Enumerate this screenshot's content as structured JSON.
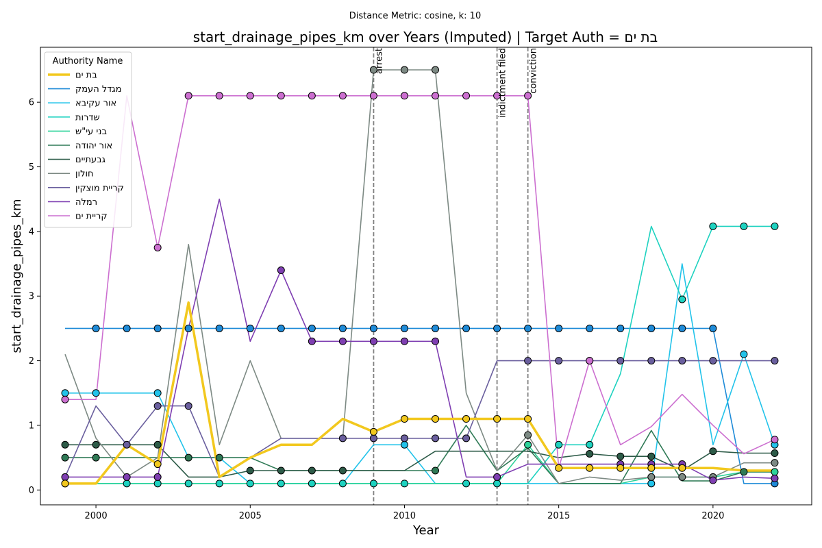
{
  "chart_data": {
    "type": "line",
    "subtitle": "Distance Metric: cosine, k: 10",
    "title": "start_drainage_pipes_km over Years (Imputed) | Target Auth = בת ים",
    "xlabel": "Year",
    "ylabel": "start_drainage_pipes_km",
    "xlim": [
      1998.2,
      2023.2
    ],
    "ylim": [
      -0.23,
      6.85
    ],
    "xticks": [
      2000,
      2005,
      2010,
      2015,
      2020
    ],
    "yticks": [
      0,
      1,
      2,
      3,
      4,
      5,
      6
    ],
    "grid": false,
    "legend": {
      "title": "Authority Name",
      "placement": "top-left"
    },
    "events": [
      {
        "x": 2009,
        "label": "arrest"
      },
      {
        "x": 2013,
        "label": "indictment filed"
      },
      {
        "x": 2014,
        "label": "conviction"
      }
    ],
    "x": [
      1999,
      2000,
      2001,
      2002,
      2003,
      2004,
      2005,
      2006,
      2007,
      2008,
      2009,
      2010,
      2011,
      2012,
      2013,
      2014,
      2015,
      2016,
      2017,
      2018,
      2019,
      2020,
      2021,
      2022
    ],
    "series": [
      {
        "name": "בת ים",
        "color": "#f2c81e",
        "width": 3.5,
        "target": true,
        "values": [
          0.1,
          0.1,
          0.7,
          0.4,
          2.9,
          0.2,
          0.5,
          0.7,
          0.7,
          1.1,
          0.9,
          1.1,
          1.1,
          1.1,
          1.1,
          1.1,
          0.34,
          0.34,
          0.34,
          0.34,
          0.34,
          0.34,
          0.3,
          0.3
        ],
        "markers": [
          1999,
          2002,
          2009,
          2010,
          2011,
          2012,
          2013,
          2014,
          2015,
          2016,
          2017,
          2018,
          2019
        ]
      },
      {
        "name": "מגדל העמק",
        "color": "#1f8bd8",
        "values": [
          2.5,
          2.5,
          2.5,
          2.5,
          2.5,
          2.5,
          2.5,
          2.5,
          2.5,
          2.5,
          2.5,
          2.5,
          2.5,
          2.5,
          2.5,
          2.5,
          2.5,
          2.5,
          2.5,
          2.5,
          2.5,
          2.5,
          0.1,
          0.1
        ],
        "markers": [
          2000,
          2001,
          2002,
          2003,
          2004,
          2005,
          2006,
          2007,
          2008,
          2009,
          2010,
          2011,
          2012,
          2013,
          2014,
          2015,
          2016,
          2017,
          2018,
          2019,
          2020,
          2022
        ]
      },
      {
        "name": "אור עקיבא",
        "color": "#22c3ea",
        "values": [
          1.5,
          1.5,
          1.5,
          1.5,
          0.5,
          0.5,
          0.1,
          0.1,
          0.1,
          0.1,
          0.7,
          0.7,
          0.1,
          0.1,
          0.1,
          0.1,
          0.1,
          0.1,
          0.1,
          0.1,
          3.5,
          0.7,
          2.1,
          0.7
        ],
        "markers": [
          1999,
          2000,
          2002,
          2010,
          2018,
          2021,
          2022
        ]
      },
      {
        "name": "שדרות",
        "color": "#1ed2c0",
        "values": [
          0.1,
          0.1,
          0.1,
          0.1,
          0.1,
          0.1,
          0.1,
          0.1,
          0.1,
          0.1,
          0.1,
          0.1,
          0.1,
          0.1,
          0.1,
          0.1,
          0.7,
          0.7,
          1.8,
          4.08,
          2.95,
          4.08,
          4.08,
          4.08
        ],
        "markers": [
          1999,
          2001,
          2002,
          2003,
          2004,
          2005,
          2006,
          2007,
          2008,
          2009,
          2010,
          2012,
          2013,
          2015,
          2016,
          2019,
          2020,
          2021,
          2022
        ]
      },
      {
        "name": "בני עי\"ש",
        "color": "#2ed39a",
        "values": [
          0.1,
          0.1,
          0.1,
          0.1,
          0.1,
          0.1,
          0.1,
          0.1,
          0.1,
          0.1,
          0.1,
          0.1,
          0.1,
          0.1,
          0.1,
          0.7,
          0.1,
          0.1,
          0.1,
          0.2,
          0.2,
          0.2,
          0.28,
          0.28
        ],
        "markers": [
          2014,
          2022
        ]
      },
      {
        "name": "אור יהודה",
        "color": "#2f7a56",
        "values": [
          0.5,
          0.5,
          0.5,
          0.5,
          0.5,
          0.5,
          0.5,
          0.3,
          0.3,
          0.3,
          0.3,
          0.3,
          0.3,
          1.0,
          0.3,
          0.65,
          0.1,
          0.1,
          0.1,
          0.92,
          0.14,
          0.14,
          0.28,
          0.28
        ],
        "markers": [
          1999,
          2000,
          2003,
          2004,
          2011,
          2021
        ]
      },
      {
        "name": "גבעתיים",
        "color": "#2d5b48",
        "values": [
          0.7,
          0.7,
          0.7,
          0.7,
          0.2,
          0.2,
          0.3,
          0.3,
          0.3,
          0.3,
          0.3,
          0.3,
          0.6,
          0.6,
          0.6,
          0.6,
          0.5,
          0.56,
          0.52,
          0.52,
          0.3,
          0.6,
          0.57,
          0.57
        ],
        "markers": [
          1999,
          2000,
          2002,
          2005,
          2006,
          2007,
          2008,
          2016,
          2017,
          2018,
          2020,
          2022
        ]
      },
      {
        "name": "חולון",
        "color": "#7d8a84",
        "values": [
          2.1,
          0.8,
          0.2,
          0.5,
          3.8,
          0.7,
          2.0,
          0.8,
          0.8,
          0.8,
          6.5,
          6.5,
          6.5,
          1.5,
          0.3,
          0.85,
          0.1,
          0.2,
          0.15,
          0.2,
          0.2,
          0.2,
          0.42,
          0.42
        ],
        "markers": [
          2009,
          2010,
          2011,
          2014,
          2018,
          2019,
          2020,
          2022
        ]
      },
      {
        "name": "קריית מוצקין",
        "color": "#6a5f9e",
        "values": [
          0.2,
          1.3,
          0.7,
          1.3,
          1.3,
          0.2,
          0.5,
          0.8,
          0.8,
          0.8,
          0.8,
          0.8,
          0.8,
          0.8,
          2.0,
          2.0,
          2.0,
          2.0,
          2.0,
          2.0,
          2.0,
          2.0,
          2.0,
          2.0
        ],
        "markers": [
          2001,
          2002,
          2003,
          2008,
          2009,
          2010,
          2011,
          2012,
          2014,
          2015,
          2016,
          2017,
          2018,
          2019,
          2020,
          2022
        ]
      },
      {
        "name": "רמלה",
        "color": "#7f3fb2",
        "values": [
          0.2,
          0.2,
          0.2,
          0.2,
          2.5,
          4.5,
          2.3,
          3.4,
          2.3,
          2.3,
          2.3,
          2.3,
          2.3,
          0.2,
          0.2,
          0.4,
          0.4,
          0.4,
          0.4,
          0.4,
          0.4,
          0.15,
          0.2,
          0.18
        ],
        "markers": [
          1999,
          2001,
          2002,
          2006,
          2007,
          2008,
          2009,
          2010,
          2011,
          2013,
          2017,
          2018,
          2019,
          2020,
          2022
        ]
      },
      {
        "name": "קריית ים",
        "color": "#cc6fd0",
        "values": [
          1.4,
          1.4,
          6.1,
          3.75,
          6.1,
          6.1,
          6.1,
          6.1,
          6.1,
          6.1,
          6.1,
          6.1,
          6.1,
          6.1,
          6.1,
          6.1,
          0.34,
          2.0,
          0.7,
          0.98,
          1.48,
          1.0,
          0.56,
          0.78
        ],
        "markers": [
          1999,
          2002,
          2003,
          2004,
          2005,
          2006,
          2007,
          2008,
          2009,
          2010,
          2011,
          2012,
          2013,
          2014,
          2016,
          2022
        ]
      }
    ]
  }
}
